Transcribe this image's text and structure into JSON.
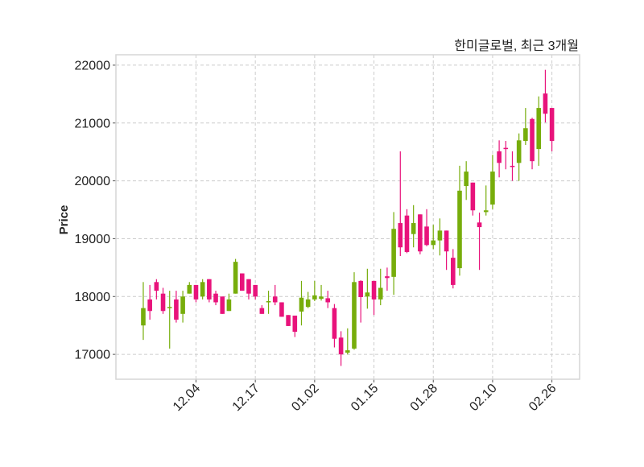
{
  "chart_data": {
    "type": "candlestick",
    "title": "한미글로벌, 최근 3개월",
    "xlabel": "",
    "ylabel": "Price",
    "ylim": [
      16570,
      22180
    ],
    "xlim": [
      -4.15,
      66.2
    ],
    "grid": true,
    "colors": {
      "up": "#77ad0b",
      "down": "#e8137b",
      "grid": "#cccccc",
      "frame": "#d6d6d6"
    },
    "yticks": [
      17000,
      18000,
      19000,
      20000,
      21000,
      22000
    ],
    "xticks": [
      {
        "index": 8,
        "label": "12.04"
      },
      {
        "index": 17,
        "label": "12.17"
      },
      {
        "index": 26,
        "label": "01.02"
      },
      {
        "index": 35,
        "label": "01.15"
      },
      {
        "index": 44,
        "label": "01.28"
      },
      {
        "index": 53,
        "label": "02.10"
      },
      {
        "index": 62,
        "label": "02.26"
      }
    ],
    "ohlc_fields": [
      "open",
      "high",
      "low",
      "close"
    ],
    "ohlc": [
      [
        17500,
        18250,
        17250,
        17800
      ],
      [
        17950,
        18200,
        17600,
        17750
      ],
      [
        18250,
        18300,
        17950,
        18100
      ],
      [
        18050,
        18150,
        17700,
        17750
      ],
      [
        17800,
        18100,
        17100,
        17820
      ],
      [
        17950,
        18100,
        17550,
        17600
      ],
      [
        17700,
        18100,
        17550,
        18000
      ],
      [
        18050,
        18250,
        18050,
        18200
      ],
      [
        18200,
        18200,
        17900,
        17950
      ],
      [
        18000,
        18300,
        17950,
        18250
      ],
      [
        18300,
        18300,
        17900,
        17950
      ],
      [
        18050,
        18100,
        17850,
        17900
      ],
      [
        18000,
        18000,
        17700,
        17700
      ],
      [
        17750,
        18050,
        17750,
        17950
      ],
      [
        18050,
        18650,
        18050,
        18600
      ],
      [
        18400,
        18400,
        18100,
        18100
      ],
      [
        18300,
        18300,
        17950,
        18050
      ],
      [
        18200,
        18200,
        17950,
        18000
      ],
      [
        17800,
        17850,
        17700,
        17700
      ],
      [
        17900,
        18100,
        17700,
        17920
      ],
      [
        18000,
        18200,
        17850,
        17900
      ],
      [
        17900,
        17900,
        17650,
        17650
      ],
      [
        17680,
        17680,
        17490,
        17490
      ],
      [
        17670,
        17670,
        17300,
        17390
      ],
      [
        17740,
        18270,
        17500,
        17980
      ],
      [
        17820,
        18080,
        17800,
        17950
      ],
      [
        17950,
        18270,
        17920,
        18020
      ],
      [
        17960,
        18200,
        17930,
        18000
      ],
      [
        17970,
        18100,
        17800,
        17900
      ],
      [
        17800,
        17870,
        17120,
        17270
      ],
      [
        17290,
        17400,
        16800,
        17000
      ],
      [
        17030,
        17450,
        17000,
        17070
      ],
      [
        17100,
        18420,
        17080,
        18250
      ],
      [
        18270,
        18280,
        17550,
        17990
      ],
      [
        18000,
        18480,
        17790,
        18070
      ],
      [
        18270,
        18270,
        17680,
        17950
      ],
      [
        17950,
        18480,
        17850,
        18150
      ],
      [
        18350,
        18500,
        18100,
        18320
      ],
      [
        18340,
        19460,
        18030,
        19170
      ],
      [
        19270,
        20510,
        18700,
        18850
      ],
      [
        19400,
        19510,
        18750,
        18770
      ],
      [
        19080,
        19580,
        18850,
        19270
      ],
      [
        19420,
        19420,
        18730,
        18780
      ],
      [
        19210,
        19510,
        18870,
        18890
      ],
      [
        18890,
        19240,
        18820,
        18970
      ],
      [
        18970,
        19350,
        18710,
        19140
      ],
      [
        19140,
        19140,
        18460,
        18780
      ],
      [
        18670,
        18820,
        18140,
        18200
      ],
      [
        18490,
        20260,
        18360,
        19830
      ],
      [
        19910,
        20340,
        19670,
        20160
      ],
      [
        19970,
        19970,
        19400,
        19490
      ],
      [
        19280,
        19450,
        18460,
        19200
      ],
      [
        19460,
        19920,
        19400,
        19490
      ],
      [
        19590,
        20450,
        19510,
        20160
      ],
      [
        20510,
        20700,
        20060,
        20310
      ],
      [
        20570,
        20690,
        20200,
        20550
      ],
      [
        20260,
        20510,
        20000,
        20250
      ],
      [
        20310,
        20820,
        20000,
        20700
      ],
      [
        20690,
        21260,
        20620,
        20910
      ],
      [
        21070,
        21090,
        20200,
        20340
      ],
      [
        20550,
        21460,
        20260,
        21260
      ],
      [
        21510,
        21920,
        21010,
        21160
      ],
      [
        21260,
        21260,
        20510,
        20690
      ]
    ]
  }
}
